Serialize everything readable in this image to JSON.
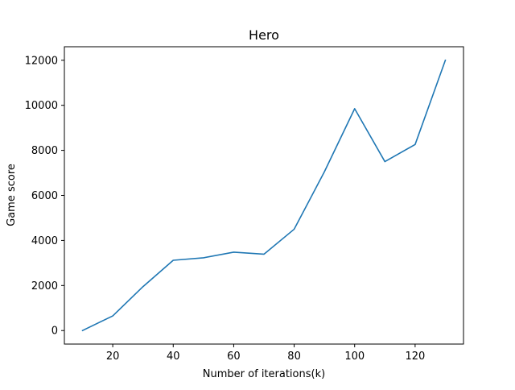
{
  "chart_data": {
    "type": "line",
    "title": "Hero",
    "xlabel": "Number of iterations(k)",
    "ylabel": "Game score",
    "xlim": [
      4,
      136
    ],
    "ylim": [
      -600,
      12600
    ],
    "xticks": [
      20,
      40,
      60,
      80,
      100,
      120
    ],
    "yticks": [
      0,
      2000,
      4000,
      6000,
      8000,
      10000,
      12000
    ],
    "grid": false,
    "series": [
      {
        "color": "#1f77b4",
        "x": [
          10,
          20,
          30,
          40,
          50,
          60,
          70,
          80,
          90,
          100,
          110,
          120,
          130
        ],
        "y": [
          0,
          650,
          1950,
          3120,
          3230,
          3480,
          3390,
          4500,
          7050,
          9850,
          7500,
          8260,
          12000
        ]
      }
    ]
  }
}
